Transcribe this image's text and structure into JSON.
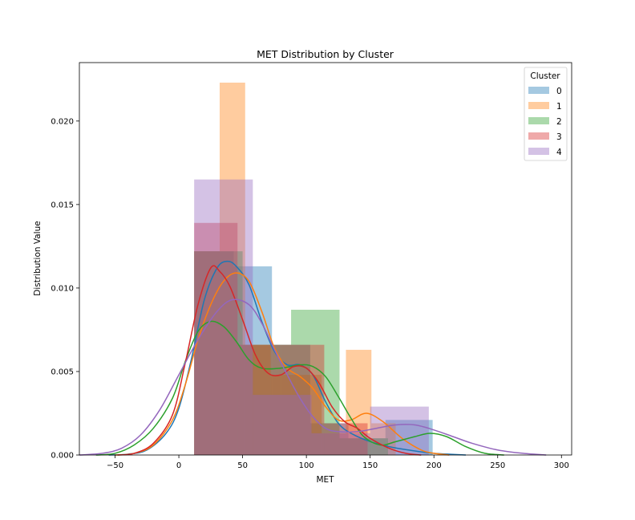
{
  "chart_data": {
    "type": "histogram",
    "title": "MET Distribution by Cluster",
    "xlabel": "MET",
    "ylabel": "Distribution Value",
    "xlim": [
      -78,
      308
    ],
    "ylim": [
      0,
      0.0235
    ],
    "xticks": [
      -50,
      0,
      50,
      100,
      150,
      200,
      250,
      300
    ],
    "yticks": [
      0.0,
      0.005,
      0.01,
      0.015,
      0.02
    ],
    "ytick_labels": [
      "0.000",
      "0.005",
      "0.010",
      "0.015",
      "0.020"
    ],
    "grid": false,
    "legend": {
      "title": "Cluster",
      "placement": "top-right"
    },
    "series": [
      {
        "name": "0",
        "color": "#1f77b4",
        "bins": [
          [
            12,
            43,
            0.0122
          ],
          [
            43,
            73,
            0.0113
          ],
          [
            73,
            103,
            0.0066
          ],
          [
            103,
            133,
            0.0019
          ],
          [
            133,
            162,
            0.001
          ],
          [
            162,
            199,
            0.0021
          ]
        ],
        "kde": [
          [
            -55,
            0
          ],
          [
            -40,
            5e-05
          ],
          [
            -25,
            0.0003
          ],
          [
            -10,
            0.0013
          ],
          [
            0,
            0.0028
          ],
          [
            10,
            0.0058
          ],
          [
            20,
            0.0093
          ],
          [
            30,
            0.0112
          ],
          [
            38,
            0.0116
          ],
          [
            45,
            0.0113
          ],
          [
            55,
            0.0102
          ],
          [
            65,
            0.008
          ],
          [
            75,
            0.0062
          ],
          [
            85,
            0.0054
          ],
          [
            95,
            0.0054
          ],
          [
            105,
            0.0048
          ],
          [
            115,
            0.0032
          ],
          [
            125,
            0.0019
          ],
          [
            135,
            0.0013
          ],
          [
            150,
            0.0008
          ],
          [
            165,
            0.0005
          ],
          [
            180,
            0.0003
          ],
          [
            200,
            0.0001
          ],
          [
            225,
            0
          ]
        ]
      },
      {
        "name": "1",
        "color": "#ff7f0e",
        "bins": [
          [
            12,
            32,
            0.0122
          ],
          [
            32,
            52,
            0.0223
          ],
          [
            52,
            72,
            0.0066
          ],
          [
            72,
            92,
            0.0048
          ],
          [
            92,
            112,
            0.0048
          ],
          [
            112,
            131,
            0.0013
          ],
          [
            131,
            151,
            0.0063
          ],
          [
            151,
            170,
            0.0019
          ]
        ],
        "kde": [
          [
            -50,
            0
          ],
          [
            -35,
            0.0001
          ],
          [
            -20,
            0.0006
          ],
          [
            -5,
            0.0021
          ],
          [
            5,
            0.0042
          ],
          [
            15,
            0.0069
          ],
          [
            25,
            0.009
          ],
          [
            35,
            0.0104
          ],
          [
            45,
            0.0109
          ],
          [
            55,
            0.0104
          ],
          [
            65,
            0.0086
          ],
          [
            75,
            0.0064
          ],
          [
            85,
            0.0052
          ],
          [
            95,
            0.0047
          ],
          [
            105,
            0.004
          ],
          [
            115,
            0.0029
          ],
          [
            125,
            0.0021
          ],
          [
            135,
            0.0021
          ],
          [
            147,
            0.0025
          ],
          [
            160,
            0.002
          ],
          [
            175,
            0.001
          ],
          [
            190,
            0.0003
          ],
          [
            200,
            0.0001
          ],
          [
            212,
            0
          ]
        ]
      },
      {
        "name": "2",
        "color": "#2ca02c",
        "bins": [
          [
            12,
            50,
            0.0122
          ],
          [
            50,
            88,
            0.0066
          ],
          [
            88,
            126,
            0.0087
          ],
          [
            126,
            164,
            0.001
          ]
        ],
        "kde": [
          [
            -65,
            0
          ],
          [
            -50,
            0.0001
          ],
          [
            -35,
            0.0006
          ],
          [
            -20,
            0.0016
          ],
          [
            -5,
            0.0034
          ],
          [
            5,
            0.0056
          ],
          [
            15,
            0.0074
          ],
          [
            25,
            0.008
          ],
          [
            35,
            0.0077
          ],
          [
            45,
            0.0068
          ],
          [
            55,
            0.0057
          ],
          [
            65,
            0.0052
          ],
          [
            80,
            0.0052
          ],
          [
            95,
            0.0054
          ],
          [
            105,
            0.0053
          ],
          [
            115,
            0.0047
          ],
          [
            125,
            0.0035
          ],
          [
            135,
            0.0022
          ],
          [
            145,
            0.0011
          ],
          [
            158,
            0.0006
          ],
          [
            170,
            0.0008
          ],
          [
            185,
            0.0011
          ],
          [
            197,
            0.0013
          ],
          [
            210,
            0.0011
          ],
          [
            225,
            0.0005
          ],
          [
            240,
            0.0001
          ],
          [
            255,
            0
          ]
        ]
      },
      {
        "name": "3",
        "color": "#d62728",
        "bins": [
          [
            12,
            46,
            0.0139
          ],
          [
            46,
            80,
            0.0066
          ],
          [
            80,
            114,
            0.0066
          ],
          [
            114,
            148,
            0.0019
          ]
        ],
        "kde": [
          [
            -48,
            0
          ],
          [
            -35,
            0.0001
          ],
          [
            -20,
            0.0007
          ],
          [
            -5,
            0.0024
          ],
          [
            5,
            0.0055
          ],
          [
            15,
            0.009
          ],
          [
            25,
            0.0112
          ],
          [
            32,
            0.011
          ],
          [
            40,
            0.0101
          ],
          [
            50,
            0.0081
          ],
          [
            60,
            0.006
          ],
          [
            70,
            0.0049
          ],
          [
            80,
            0.0048
          ],
          [
            90,
            0.0053
          ],
          [
            100,
            0.0052
          ],
          [
            110,
            0.0043
          ],
          [
            120,
            0.0029
          ],
          [
            130,
            0.002
          ],
          [
            140,
            0.0016
          ],
          [
            150,
            0.001
          ],
          [
            165,
            0.0004
          ],
          [
            178,
            0.0001
          ],
          [
            190,
            0
          ]
        ]
      },
      {
        "name": "4",
        "color": "#9467bd",
        "bins": [
          [
            12,
            58,
            0.0165
          ],
          [
            58,
            104,
            0.0036
          ],
          [
            104,
            150,
            0.0013
          ],
          [
            150,
            196,
            0.0029
          ]
        ],
        "kde": [
          [
            -78,
            0
          ],
          [
            -60,
            0.0001
          ],
          [
            -45,
            0.0004
          ],
          [
            -30,
            0.0012
          ],
          [
            -15,
            0.0027
          ],
          [
            0,
            0.0048
          ],
          [
            15,
            0.0069
          ],
          [
            30,
            0.0086
          ],
          [
            42,
            0.0093
          ],
          [
            55,
            0.009
          ],
          [
            65,
            0.0079
          ],
          [
            75,
            0.0063
          ],
          [
            85,
            0.0048
          ],
          [
            95,
            0.0034
          ],
          [
            105,
            0.0023
          ],
          [
            115,
            0.0016
          ],
          [
            125,
            0.0014
          ],
          [
            140,
            0.0014
          ],
          [
            155,
            0.0016
          ],
          [
            170,
            0.0018
          ],
          [
            185,
            0.0018
          ],
          [
            200,
            0.0015
          ],
          [
            215,
            0.0011
          ],
          [
            230,
            0.0007
          ],
          [
            250,
            0.0003
          ],
          [
            270,
            0.0001
          ],
          [
            288,
            0
          ]
        ]
      }
    ]
  }
}
